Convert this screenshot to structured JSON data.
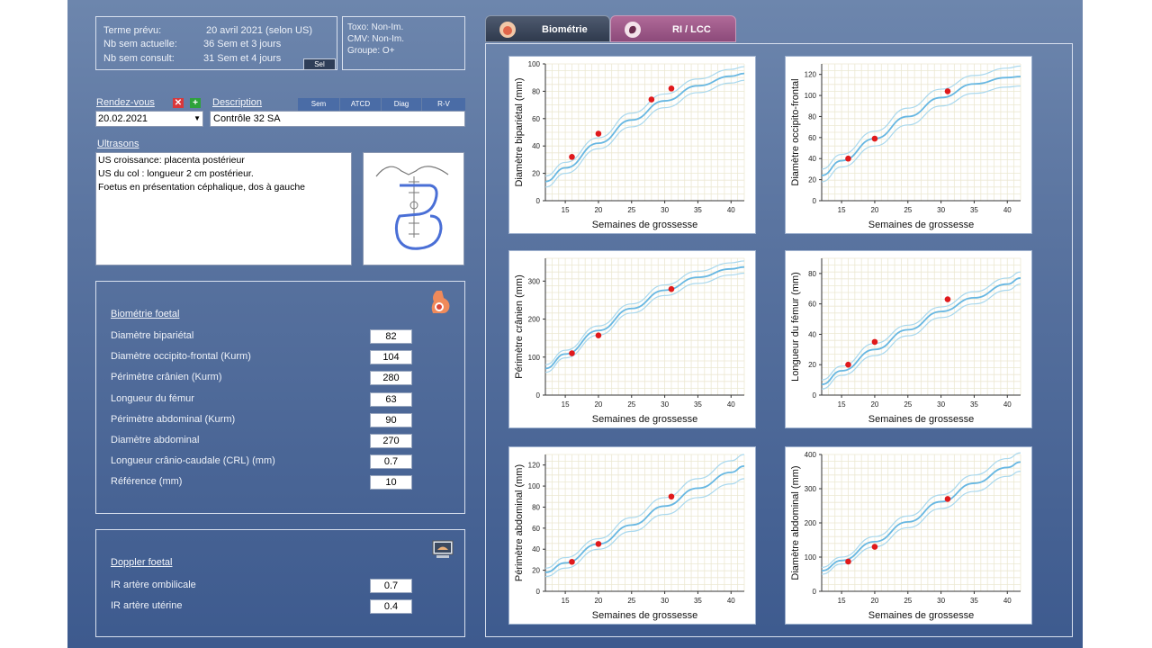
{
  "pregnancy": {
    "terme_label": "Terme prévu:",
    "terme_value": "20 avril 2021 (selon US)",
    "sem_actuelle_label": "Nb sem actuelle:",
    "sem_actuelle_value": "36 Sem et 3 jours",
    "sem_consult_label": "Nb sem consult:",
    "sem_consult_value": "31 Sem et 4 jours",
    "sel_button": "Sel"
  },
  "serology": {
    "toxo": "Toxo: Non-Im.",
    "cmv": "CMV: Non-Im.",
    "groupe": "Groupe: O+"
  },
  "rdv": {
    "label": "Rendez-vous",
    "date": "20.02.2021",
    "delete_icon": "✕",
    "add_icon": "+",
    "description_label": "Description",
    "description_value": "Contrôle 32 SA",
    "header_buttons": [
      "Sem",
      "ATCD",
      "Diag",
      "R-V"
    ]
  },
  "ultrasons": {
    "label": "Ultrasons",
    "lines": [
      "US croissance: placenta postérieur",
      "US du col : longueur 2 cm postérieur.",
      "Foetus en présentation céphalique, dos à gauche"
    ]
  },
  "biometrie": {
    "title": "Biométrie foetal",
    "icon": "pregnancy-icon",
    "rows": [
      {
        "label": "Diamètre bipariétal",
        "value": "82"
      },
      {
        "label": "Diamètre occipito-frontal (Kurm)",
        "value": "104"
      },
      {
        "label": "Périmètre crânien (Kurm)",
        "value": "280"
      },
      {
        "label": "Longueur du fémur",
        "value": "63"
      },
      {
        "label": "Périmètre abdominal (Kurm)",
        "value": "90"
      },
      {
        "label": "Diamètre abdominal",
        "value": "270"
      },
      {
        "label": "Longueur crânio-caudale (CRL) (mm)",
        "value": "0.7"
      },
      {
        "label": "Référence (mm)",
        "value": "10"
      }
    ]
  },
  "doppler": {
    "title": "Doppler foetal",
    "icon": "ultrasound-monitor-icon",
    "rows": [
      {
        "label": "IR artère ombilicale",
        "value": "0.7"
      },
      {
        "label": "IR artère utérine",
        "value": "0.4"
      }
    ]
  },
  "tabs": [
    {
      "label": "Biométrie",
      "active": true,
      "icon": "pregnancy-icon"
    },
    {
      "label": "RI / LCC",
      "active": false,
      "icon": "fetus-icon"
    }
  ],
  "colors": {
    "band": "#a9d8ee",
    "median": "#67b7e2",
    "point": "#e0191b",
    "grid": "#ece8d2"
  },
  "chart_data": [
    {
      "type": "line",
      "ylabel": "Diamètre bipariétal (mm)",
      "xlabel": "Semaines de grossesse",
      "xlim": [
        12,
        42
      ],
      "ylim": [
        0,
        100
      ],
      "xticks": [
        15,
        20,
        25,
        30,
        35,
        40
      ],
      "yticks": [
        0,
        20,
        40,
        60,
        80,
        100
      ],
      "series": [
        {
          "role": "upper",
          "x": [
            12,
            15,
            20,
            25,
            30,
            35,
            40,
            42
          ],
          "y": [
            18,
            28,
            46,
            64,
            78,
            89,
            96,
            98
          ]
        },
        {
          "role": "median",
          "x": [
            12,
            15,
            20,
            25,
            30,
            35,
            40,
            42
          ],
          "y": [
            14,
            24,
            42,
            59,
            73,
            84,
            91,
            93
          ]
        },
        {
          "role": "lower",
          "x": [
            12,
            15,
            20,
            25,
            30,
            35,
            40,
            42
          ],
          "y": [
            10,
            20,
            38,
            54,
            68,
            79,
            86,
            88
          ]
        }
      ],
      "points": [
        {
          "x": 16,
          "y": 32
        },
        {
          "x": 20,
          "y": 49
        },
        {
          "x": 28,
          "y": 74
        },
        {
          "x": 31,
          "y": 82
        }
      ]
    },
    {
      "type": "line",
      "ylabel": "Diamètre occipito-frontal",
      "xlabel": "Semaines de grossesse",
      "xlim": [
        12,
        42
      ],
      "ylim": [
        0,
        130
      ],
      "xticks": [
        15,
        20,
        25,
        30,
        35,
        40
      ],
      "yticks": [
        0,
        20,
        40,
        60,
        80,
        100,
        120
      ],
      "series": [
        {
          "role": "upper",
          "x": [
            12,
            15,
            20,
            25,
            30,
            35,
            40,
            42
          ],
          "y": [
            30,
            44,
            66,
            88,
            106,
            119,
            126,
            128
          ]
        },
        {
          "role": "median",
          "x": [
            12,
            15,
            20,
            25,
            30,
            35,
            40,
            42
          ],
          "y": [
            24,
            38,
            59,
            80,
            98,
            111,
            117,
            118
          ]
        },
        {
          "role": "lower",
          "x": [
            12,
            15,
            20,
            25,
            30,
            35,
            40,
            42
          ],
          "y": [
            18,
            32,
            52,
            72,
            90,
            102,
            108,
            109
          ]
        }
      ],
      "points": [
        {
          "x": 16,
          "y": 40
        },
        {
          "x": 20,
          "y": 59
        },
        {
          "x": 31,
          "y": 104
        }
      ]
    },
    {
      "type": "line",
      "ylabel": "Périmètre crânien (mm)",
      "xlabel": "Semaines de grossesse",
      "xlim": [
        12,
        42
      ],
      "ylim": [
        0,
        360
      ],
      "xticks": [
        15,
        20,
        25,
        30,
        35,
        40
      ],
      "yticks": [
        0,
        100,
        200,
        300
      ],
      "series": [
        {
          "role": "upper",
          "x": [
            12,
            15,
            20,
            25,
            30,
            35,
            40,
            42
          ],
          "y": [
            80,
            118,
            182,
            240,
            290,
            326,
            348,
            353
          ]
        },
        {
          "role": "median",
          "x": [
            12,
            15,
            20,
            25,
            30,
            35,
            40,
            42
          ],
          "y": [
            70,
            108,
            170,
            228,
            276,
            310,
            332,
            337
          ]
        },
        {
          "role": "lower",
          "x": [
            12,
            15,
            20,
            25,
            30,
            35,
            40,
            42
          ],
          "y": [
            60,
            98,
            158,
            216,
            262,
            294,
            316,
            321
          ]
        }
      ],
      "points": [
        {
          "x": 16,
          "y": 110
        },
        {
          "x": 20,
          "y": 157
        },
        {
          "x": 31,
          "y": 279
        }
      ]
    },
    {
      "type": "line",
      "ylabel": "Longueur du fémur (mm)",
      "xlabel": "Semaines de grossesse",
      "xlim": [
        12,
        42
      ],
      "ylim": [
        0,
        90
      ],
      "xticks": [
        15,
        20,
        25,
        30,
        35,
        40
      ],
      "yticks": [
        0,
        20,
        40,
        60,
        80
      ],
      "series": [
        {
          "role": "upper",
          "x": [
            12,
            15,
            20,
            25,
            30,
            35,
            40,
            42
          ],
          "y": [
            10,
            19,
            34,
            46,
            58,
            68,
            77,
            81
          ]
        },
        {
          "role": "median",
          "x": [
            12,
            15,
            20,
            25,
            30,
            35,
            40,
            42
          ],
          "y": [
            7,
            16,
            30,
            43,
            55,
            64,
            73,
            77
          ]
        },
        {
          "role": "lower",
          "x": [
            12,
            15,
            20,
            25,
            30,
            35,
            40,
            42
          ],
          "y": [
            4,
            13,
            26,
            39,
            51,
            60,
            69,
            73
          ]
        }
      ],
      "points": [
        {
          "x": 16,
          "y": 20
        },
        {
          "x": 20,
          "y": 35
        },
        {
          "x": 31,
          "y": 63
        }
      ]
    },
    {
      "type": "line",
      "ylabel": "Périmètre abdominal (mm)",
      "xlabel": "Semaines de grossesse",
      "xlim": [
        12,
        42
      ],
      "ylim": [
        0,
        130
      ],
      "xticks": [
        15,
        20,
        25,
        30,
        35,
        40
      ],
      "yticks": [
        0,
        20,
        40,
        60,
        80,
        100,
        120
      ],
      "series": [
        {
          "role": "upper",
          "x": [
            12,
            15,
            20,
            25,
            30,
            35,
            40,
            42
          ],
          "y": [
            22,
            32,
            50,
            70,
            89,
            107,
            124,
            130
          ]
        },
        {
          "role": "median",
          "x": [
            12,
            15,
            20,
            25,
            30,
            35,
            40,
            42
          ],
          "y": [
            18,
            27,
            45,
            63,
            81,
            98,
            113,
            119
          ]
        },
        {
          "role": "lower",
          "x": [
            12,
            15,
            20,
            25,
            30,
            35,
            40,
            42
          ],
          "y": [
            14,
            22,
            40,
            57,
            73,
            89,
            102,
            107
          ]
        }
      ],
      "points": [
        {
          "x": 16,
          "y": 28
        },
        {
          "x": 20,
          "y": 45
        },
        {
          "x": 31,
          "y": 90
        }
      ]
    },
    {
      "type": "line",
      "ylabel": "Diamètre abdominal (mm)",
      "xlabel": "Semaines de grossesse",
      "xlim": [
        12,
        42
      ],
      "ylim": [
        0,
        400
      ],
      "xticks": [
        15,
        20,
        25,
        30,
        35,
        40
      ],
      "yticks": [
        0,
        100,
        200,
        300,
        400
      ],
      "series": [
        {
          "role": "upper",
          "x": [
            12,
            15,
            20,
            25,
            30,
            35,
            40,
            42
          ],
          "y": [
            70,
            100,
            160,
            220,
            282,
            340,
            388,
            405
          ]
        },
        {
          "role": "median",
          "x": [
            12,
            15,
            20,
            25,
            30,
            35,
            40,
            42
          ],
          "y": [
            60,
            90,
            145,
            203,
            262,
            316,
            362,
            378
          ]
        },
        {
          "role": "lower",
          "x": [
            12,
            15,
            20,
            25,
            30,
            35,
            40,
            42
          ],
          "y": [
            50,
            80,
            130,
            186,
            242,
            292,
            336,
            351
          ]
        }
      ],
      "points": [
        {
          "x": 16,
          "y": 87
        },
        {
          "x": 20,
          "y": 130
        },
        {
          "x": 31,
          "y": 270
        }
      ]
    }
  ]
}
